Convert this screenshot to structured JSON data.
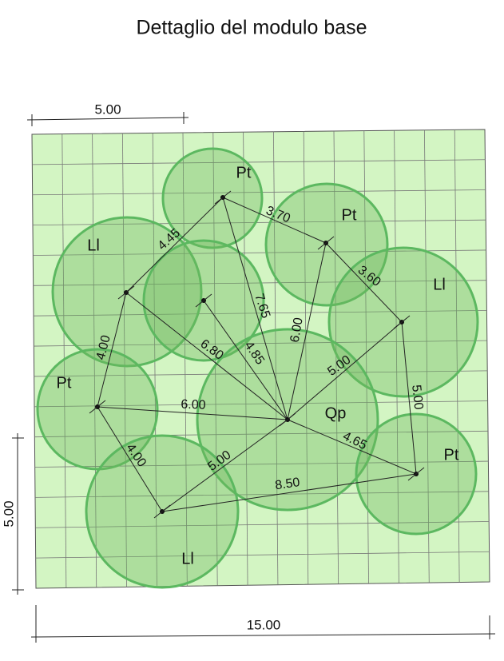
{
  "title": "Dettaglio del modulo base",
  "dimensions": [
    {
      "label": "5.00"
    },
    {
      "label": "5.00"
    },
    {
      "label": "15.00"
    }
  ],
  "nodes": [
    {
      "label": "Pt"
    },
    {
      "label": "Pt"
    },
    {
      "label": "Ll"
    },
    {
      "label": "Ll"
    },
    {
      "label": "Pt"
    },
    {
      "label": "Qp"
    },
    {
      "label": "Pt"
    },
    {
      "label": "Ll"
    }
  ],
  "edges": [
    {
      "label": "3.70"
    },
    {
      "label": "3.60"
    },
    {
      "label": "4.45"
    },
    {
      "label": "4.00"
    },
    {
      "label": "6.80"
    },
    {
      "label": "4.85"
    },
    {
      "label": "7.65"
    },
    {
      "label": "6.00"
    },
    {
      "label": "5.00"
    },
    {
      "label": "5.00"
    },
    {
      "label": "6.00"
    },
    {
      "label": "4.65"
    },
    {
      "label": "4.00"
    },
    {
      "label": "5.00"
    },
    {
      "label": "8.50"
    }
  ]
}
